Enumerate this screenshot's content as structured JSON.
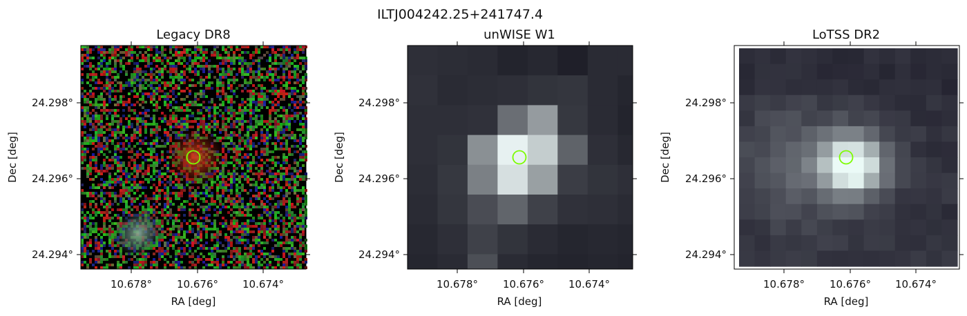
{
  "figure": {
    "suptitle": "ILTJ004242.25+241747.4",
    "panels": [
      {
        "title": "Legacy DR8",
        "xlabel": "RA [deg]",
        "ylabel": "Dec [deg]",
        "xticks": [
          "10.678°",
          "10.676°",
          "10.674°"
        ],
        "yticks": [
          "24.298°",
          "24.296°",
          "24.294°"
        ],
        "image_kind": "rgb-noise",
        "background": "#000000"
      },
      {
        "title": "unWISE W1",
        "xlabel": "RA [deg]",
        "ylabel": "Dec [deg]",
        "xticks": [
          "10.678°",
          "10.676°",
          "10.674°"
        ],
        "yticks": [
          "24.298°",
          "24.296°",
          "24.294°"
        ],
        "image_kind": "gray-blocks",
        "background": "#1a1a22"
      },
      {
        "title": "LoTSS DR2",
        "xlabel": "RA [deg]",
        "ylabel": "Dec [deg]",
        "xticks": [
          "10.678°",
          "10.676°",
          "10.674°"
        ],
        "yticks": [
          "24.298°",
          "24.296°",
          "24.294°"
        ],
        "image_kind": "radio-blocks",
        "background": "#202028"
      }
    ],
    "marker": {
      "shape": "circle",
      "color": "#7cfc00"
    }
  }
}
